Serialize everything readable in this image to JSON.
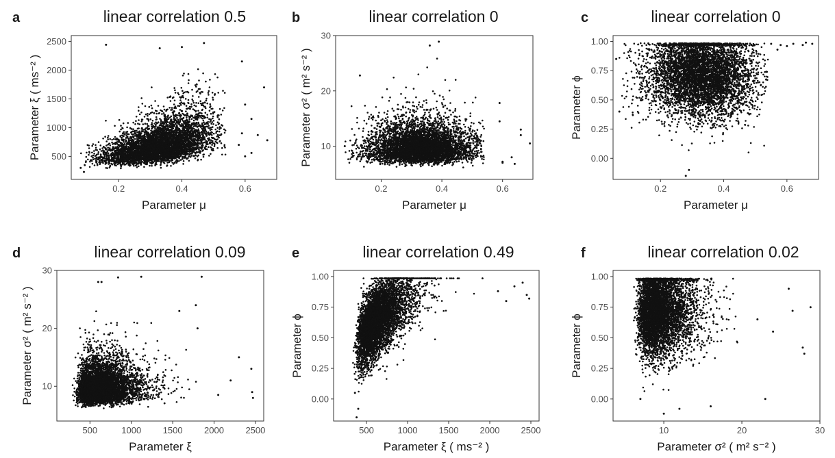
{
  "chart_data": [
    {
      "id": "a",
      "type": "scatter",
      "letter": "a",
      "title": "linear correlation  0.5",
      "xlabel": "Parameter  μ",
      "ylabel": "Parameter ξ ( ms⁻² )",
      "xlim": [
        0.05,
        0.7
      ],
      "ylim": [
        100,
        2600
      ],
      "xticks": [
        0.2,
        0.4,
        0.6
      ],
      "xticklabels": [
        "0.2",
        "0.4",
        "0.6"
      ],
      "yticks": [
        500,
        1000,
        1500,
        2000,
        2500
      ],
      "yticklabels": [
        "500",
        "1000",
        "1500",
        "2000",
        "2500"
      ],
      "correlation": 0.5,
      "cloud": {
        "x_mean": 0.33,
        "x_sd": 0.085,
        "x_min": 0.08,
        "x_max": 0.54,
        "y_mean": 700,
        "y_sd": 280,
        "y_min": 180,
        "y_max": 2450,
        "n": 5200,
        "skew_y": true
      },
      "points": [
        {
          "x": 0.16,
          "y": 2440
        },
        {
          "x": 0.59,
          "y": 2150
        },
        {
          "x": 0.66,
          "y": 1700
        },
        {
          "x": 0.6,
          "y": 1400
        },
        {
          "x": 0.62,
          "y": 1150
        },
        {
          "x": 0.59,
          "y": 900
        },
        {
          "x": 0.64,
          "y": 870
        },
        {
          "x": 0.67,
          "y": 780
        },
        {
          "x": 0.58,
          "y": 700
        },
        {
          "x": 0.6,
          "y": 500
        },
        {
          "x": 0.62,
          "y": 560
        },
        {
          "x": 0.08,
          "y": 300
        },
        {
          "x": 0.09,
          "y": 230
        },
        {
          "x": 0.4,
          "y": 2400
        },
        {
          "x": 0.47,
          "y": 2470
        },
        {
          "x": 0.33,
          "y": 2380
        }
      ]
    },
    {
      "id": "b",
      "type": "scatter",
      "letter": "b",
      "title": "linear correlation  0",
      "xlabel": "Parameter  μ",
      "ylabel": "Parameter σ² ( m² s⁻² )",
      "xlim": [
        0.05,
        0.7
      ],
      "ylim": [
        4,
        30
      ],
      "xticks": [
        0.2,
        0.4,
        0.6
      ],
      "xticklabels": [
        "0.2",
        "0.4",
        "0.6"
      ],
      "yticks": [
        10,
        20,
        30
      ],
      "yticklabels": [
        "10",
        "20",
        "30"
      ],
      "correlation": 0,
      "cloud": {
        "x_mean": 0.33,
        "x_sd": 0.085,
        "x_min": 0.08,
        "x_max": 0.54,
        "y_mean": 10,
        "y_sd": 2.6,
        "y_min": 5.2,
        "y_max": 27,
        "n": 5200,
        "skew_y": true
      },
      "points": [
        {
          "x": 0.36,
          "y": 28.2
        },
        {
          "x": 0.39,
          "y": 28.9
        },
        {
          "x": 0.59,
          "y": 17.8
        },
        {
          "x": 0.59,
          "y": 14.5
        },
        {
          "x": 0.66,
          "y": 13
        },
        {
          "x": 0.66,
          "y": 12
        },
        {
          "x": 0.69,
          "y": 10.5
        },
        {
          "x": 0.6,
          "y": 7.2
        },
        {
          "x": 0.63,
          "y": 8
        },
        {
          "x": 0.64,
          "y": 6.8
        },
        {
          "x": 0.08,
          "y": 10
        },
        {
          "x": 0.13,
          "y": 22.8
        },
        {
          "x": 0.6,
          "y": 7
        }
      ]
    },
    {
      "id": "c",
      "type": "scatter",
      "letter": "c",
      "title": "linear correlation  0",
      "xlabel": "Parameter  μ",
      "ylabel": "Parameter  ϕ",
      "xlim": [
        0.05,
        0.7
      ],
      "ylim": [
        -0.18,
        1.05
      ],
      "xticks": [
        0.2,
        0.4,
        0.6
      ],
      "xticklabels": [
        "0.2",
        "0.4",
        "0.6"
      ],
      "yticks": [
        0,
        0.25,
        0.5,
        0.75,
        1
      ],
      "yticklabels": [
        "0.00",
        "0.25",
        "0.50",
        "0.75",
        "1.00"
      ],
      "correlation": 0,
      "cloud": {
        "x_mean": 0.33,
        "x_sd": 0.085,
        "x_min": 0.07,
        "x_max": 0.54,
        "y_mean": 0.72,
        "y_sd": 0.18,
        "y_min": 0.05,
        "y_max": 0.985,
        "n": 5200,
        "skew_y": false
      },
      "points": [
        {
          "x": 0.58,
          "y": 0.97
        },
        {
          "x": 0.6,
          "y": 0.96
        },
        {
          "x": 0.62,
          "y": 0.98
        },
        {
          "x": 0.65,
          "y": 0.97
        },
        {
          "x": 0.66,
          "y": 0.99
        },
        {
          "x": 0.68,
          "y": 0.98
        },
        {
          "x": 0.55,
          "y": 0.98
        },
        {
          "x": 0.57,
          "y": 0.93
        },
        {
          "x": 0.28,
          "y": -0.15
        },
        {
          "x": 0.29,
          "y": -0.1
        },
        {
          "x": 0.07,
          "y": 0.4
        },
        {
          "x": 0.06,
          "y": 0.85
        }
      ]
    },
    {
      "id": "d",
      "type": "scatter",
      "letter": "d",
      "title": "linear correlation  0.09",
      "xlabel": "Parameter  ξ",
      "ylabel": "Parameter σ² ( m² s⁻² )",
      "xlim": [
        100,
        2600
      ],
      "ylim": [
        4,
        30
      ],
      "xticks": [
        500,
        1000,
        1500,
        2000,
        2500
      ],
      "xticklabels": [
        "500",
        "1000",
        "1500",
        "2000",
        "2500"
      ],
      "yticks": [
        10,
        20,
        30
      ],
      "yticklabels": [
        "10",
        "20",
        "30"
      ],
      "correlation": 0.09,
      "cloud": {
        "x_mean": 650,
        "x_sd": 280,
        "x_min": 200,
        "x_max": 2000,
        "y_mean": 10,
        "y_sd": 2.6,
        "y_min": 5.2,
        "y_max": 24,
        "n": 5200,
        "skew_x": true,
        "skew_y": true
      },
      "points": [
        {
          "x": 600,
          "y": 28
        },
        {
          "x": 640,
          "y": 28
        },
        {
          "x": 840,
          "y": 28.8
        },
        {
          "x": 1120,
          "y": 28.9
        },
        {
          "x": 1850,
          "y": 28.9
        },
        {
          "x": 1780,
          "y": 24
        },
        {
          "x": 2200,
          "y": 11
        },
        {
          "x": 2300,
          "y": 15
        },
        {
          "x": 2450,
          "y": 13
        },
        {
          "x": 2460,
          "y": 9
        },
        {
          "x": 2470,
          "y": 8
        },
        {
          "x": 2050,
          "y": 8.5
        },
        {
          "x": 1800,
          "y": 20
        },
        {
          "x": 1580,
          "y": 23
        }
      ]
    },
    {
      "id": "e",
      "type": "scatter",
      "letter": "e",
      "title": "linear correlation  0.49",
      "xlabel": "Parameter  ξ ( ms⁻² )",
      "ylabel": "Parameter  ϕ",
      "xlim": [
        100,
        2600
      ],
      "ylim": [
        -0.18,
        1.05
      ],
      "xticks": [
        500,
        1000,
        1500,
        2000,
        2500
      ],
      "xticklabels": [
        "500",
        "1000",
        "1500",
        "2000",
        "2500"
      ],
      "yticks": [
        0,
        0.25,
        0.5,
        0.75,
        1
      ],
      "yticklabels": [
        "0.00",
        "0.25",
        "0.50",
        "0.75",
        "1.00"
      ],
      "correlation": 0.49,
      "cloud": {
        "x_mean": 650,
        "x_sd": 280,
        "x_min": 250,
        "x_max": 2200,
        "y_mean": 0.72,
        "y_sd": 0.18,
        "y_min": 0.05,
        "y_max": 0.985,
        "n": 5200,
        "skew_x": true
      },
      "points": [
        {
          "x": 2400,
          "y": 0.95
        },
        {
          "x": 2450,
          "y": 0.85
        },
        {
          "x": 2480,
          "y": 0.82
        },
        {
          "x": 2300,
          "y": 0.92
        },
        {
          "x": 2200,
          "y": 0.8
        },
        {
          "x": 2100,
          "y": 0.88
        },
        {
          "x": 380,
          "y": -0.15
        },
        {
          "x": 400,
          "y": -0.08
        },
        {
          "x": 360,
          "y": 0.05
        }
      ]
    },
    {
      "id": "f",
      "type": "scatter",
      "letter": "f",
      "title": "linear correlation  0.02",
      "xlabel": "Parameter σ² ( m² s⁻² )",
      "ylabel": "Parameter  ϕ",
      "xlim": [
        3.5,
        30
      ],
      "ylim": [
        -0.18,
        1.05
      ],
      "xticks": [
        10,
        20,
        30
      ],
      "xticklabels": [
        "10",
        "20",
        "30"
      ],
      "yticks": [
        0,
        0.25,
        0.5,
        0.75,
        1
      ],
      "yticklabels": [
        "0.00",
        "0.25",
        "0.50",
        "0.75",
        "1.00"
      ],
      "correlation": 0.02,
      "cloud": {
        "x_mean": 9.5,
        "x_sd": 2.6,
        "x_min": 5.2,
        "x_max": 20,
        "y_mean": 0.72,
        "y_sd": 0.18,
        "y_min": 0.05,
        "y_max": 0.985,
        "n": 5200,
        "skew_x": true
      },
      "points": [
        {
          "x": 28.8,
          "y": 0.75
        },
        {
          "x": 26.5,
          "y": 0.72
        },
        {
          "x": 27.8,
          "y": 0.42
        },
        {
          "x": 28,
          "y": 0.37
        },
        {
          "x": 23,
          "y": 0.0
        },
        {
          "x": 26,
          "y": 0.9
        },
        {
          "x": 24,
          "y": 0.55
        },
        {
          "x": 22,
          "y": 0.65
        },
        {
          "x": 10,
          "y": -0.12
        },
        {
          "x": 12,
          "y": -0.08
        },
        {
          "x": 7,
          "y": 0.0
        },
        {
          "x": 16,
          "y": -0.06
        }
      ]
    }
  ]
}
